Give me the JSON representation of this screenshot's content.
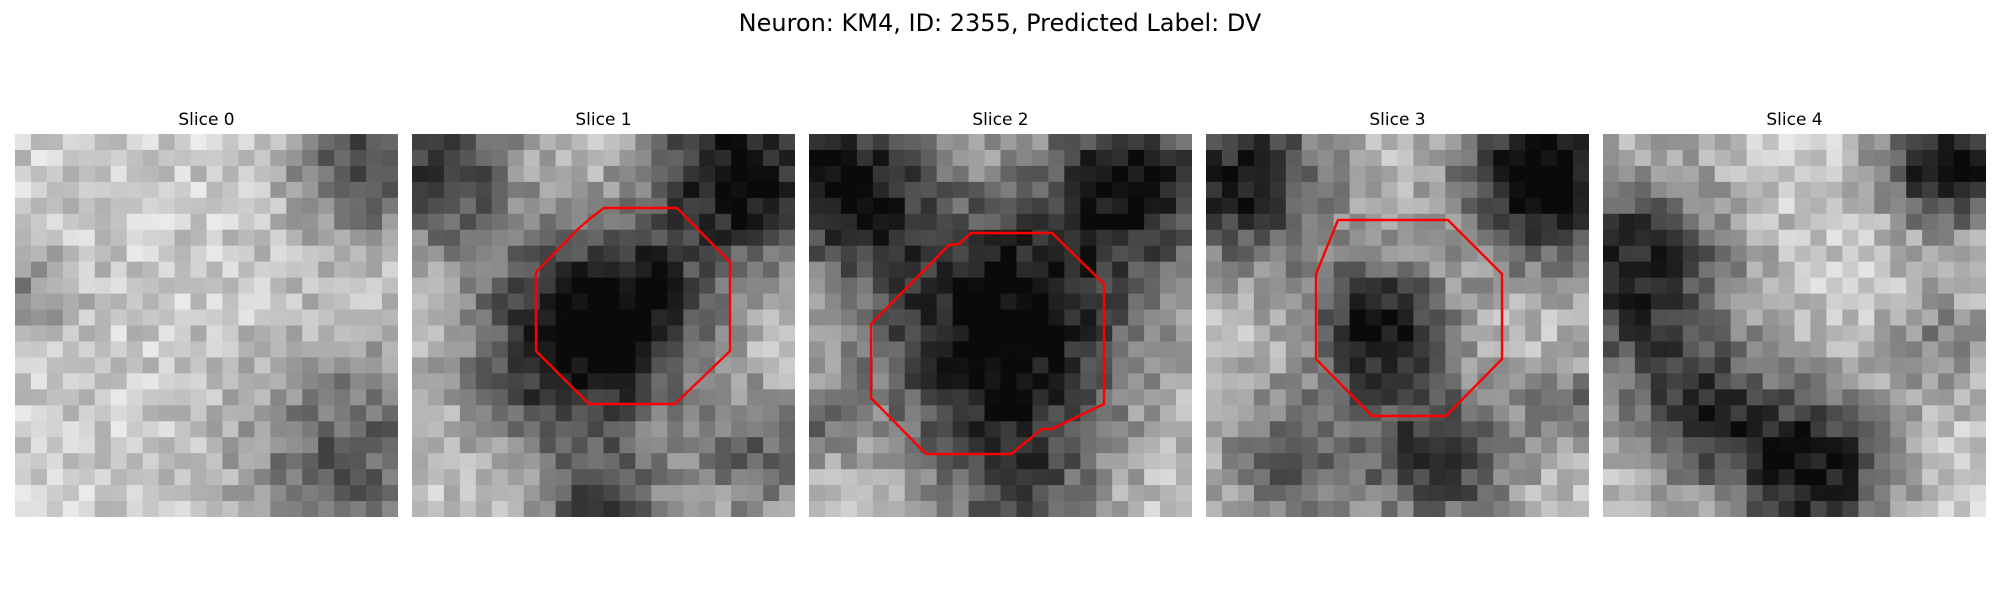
{
  "figure": {
    "title": "Neuron: KM4, ID: 2355, Predicted Label: DV"
  },
  "panels": [
    {
      "title": "Slice 0",
      "has_outline": false,
      "outline_color": "#ff0000",
      "blobs": [
        {
          "u": 0.92,
          "v": 0.08,
          "r": 0.14,
          "d": 0.55
        },
        {
          "u": 0.87,
          "v": 0.85,
          "r": 0.2,
          "d": 0.45
        },
        {
          "u": 0.02,
          "v": 0.42,
          "r": 0.1,
          "d": 0.25
        }
      ]
    },
    {
      "title": "Slice 1",
      "has_outline": true,
      "outline_color": "#ff0000",
      "blobs": [
        {
          "u": 0.42,
          "v": 0.56,
          "r": 0.2,
          "d": 0.75
        },
        {
          "u": 0.6,
          "v": 0.43,
          "r": 0.14,
          "d": 0.35
        },
        {
          "u": 0.08,
          "v": 0.1,
          "r": 0.14,
          "d": 0.6
        },
        {
          "u": 0.86,
          "v": 0.1,
          "r": 0.17,
          "d": 0.8
        },
        {
          "u": 0.92,
          "v": 0.85,
          "r": 0.13,
          "d": 0.4
        },
        {
          "u": 0.5,
          "v": 1.0,
          "r": 0.12,
          "d": 0.45
        }
      ]
    },
    {
      "title": "Slice 2",
      "has_outline": true,
      "outline_color": "#ff0000",
      "blobs": [
        {
          "u": 0.5,
          "v": 0.52,
          "r": 0.25,
          "d": 0.85
        },
        {
          "u": 0.08,
          "v": 0.12,
          "r": 0.16,
          "d": 0.75
        },
        {
          "u": 0.85,
          "v": 0.12,
          "r": 0.16,
          "d": 0.7
        },
        {
          "u": 0.0,
          "v": 0.75,
          "r": 0.08,
          "d": 0.3
        },
        {
          "u": 0.55,
          "v": 0.95,
          "r": 0.14,
          "d": 0.35
        }
      ]
    },
    {
      "title": "Slice 3",
      "has_outline": true,
      "outline_color": "#ff0000",
      "blobs": [
        {
          "u": 0.46,
          "v": 0.51,
          "r": 0.13,
          "d": 0.75
        },
        {
          "u": 0.1,
          "v": 0.12,
          "r": 0.17,
          "d": 0.7
        },
        {
          "u": 0.88,
          "v": 0.12,
          "r": 0.16,
          "d": 0.85
        },
        {
          "u": 0.62,
          "v": 0.85,
          "r": 0.14,
          "d": 0.6
        },
        {
          "u": 0.22,
          "v": 0.85,
          "r": 0.14,
          "d": 0.45
        },
        {
          "u": 0.95,
          "v": 0.7,
          "r": 0.09,
          "d": 0.35
        }
      ]
    },
    {
      "title": "Slice 4",
      "has_outline": false,
      "outline_color": "#ff0000",
      "blobs": [
        {
          "u": 0.08,
          "v": 0.35,
          "r": 0.18,
          "d": 0.7
        },
        {
          "u": 0.9,
          "v": 0.08,
          "r": 0.12,
          "d": 0.8
        },
        {
          "u": 0.55,
          "v": 0.88,
          "r": 0.15,
          "d": 0.75
        },
        {
          "u": 0.25,
          "v": 0.72,
          "r": 0.14,
          "d": 0.55
        },
        {
          "u": 0.88,
          "v": 0.55,
          "r": 0.1,
          "d": 0.3
        }
      ]
    }
  ]
}
